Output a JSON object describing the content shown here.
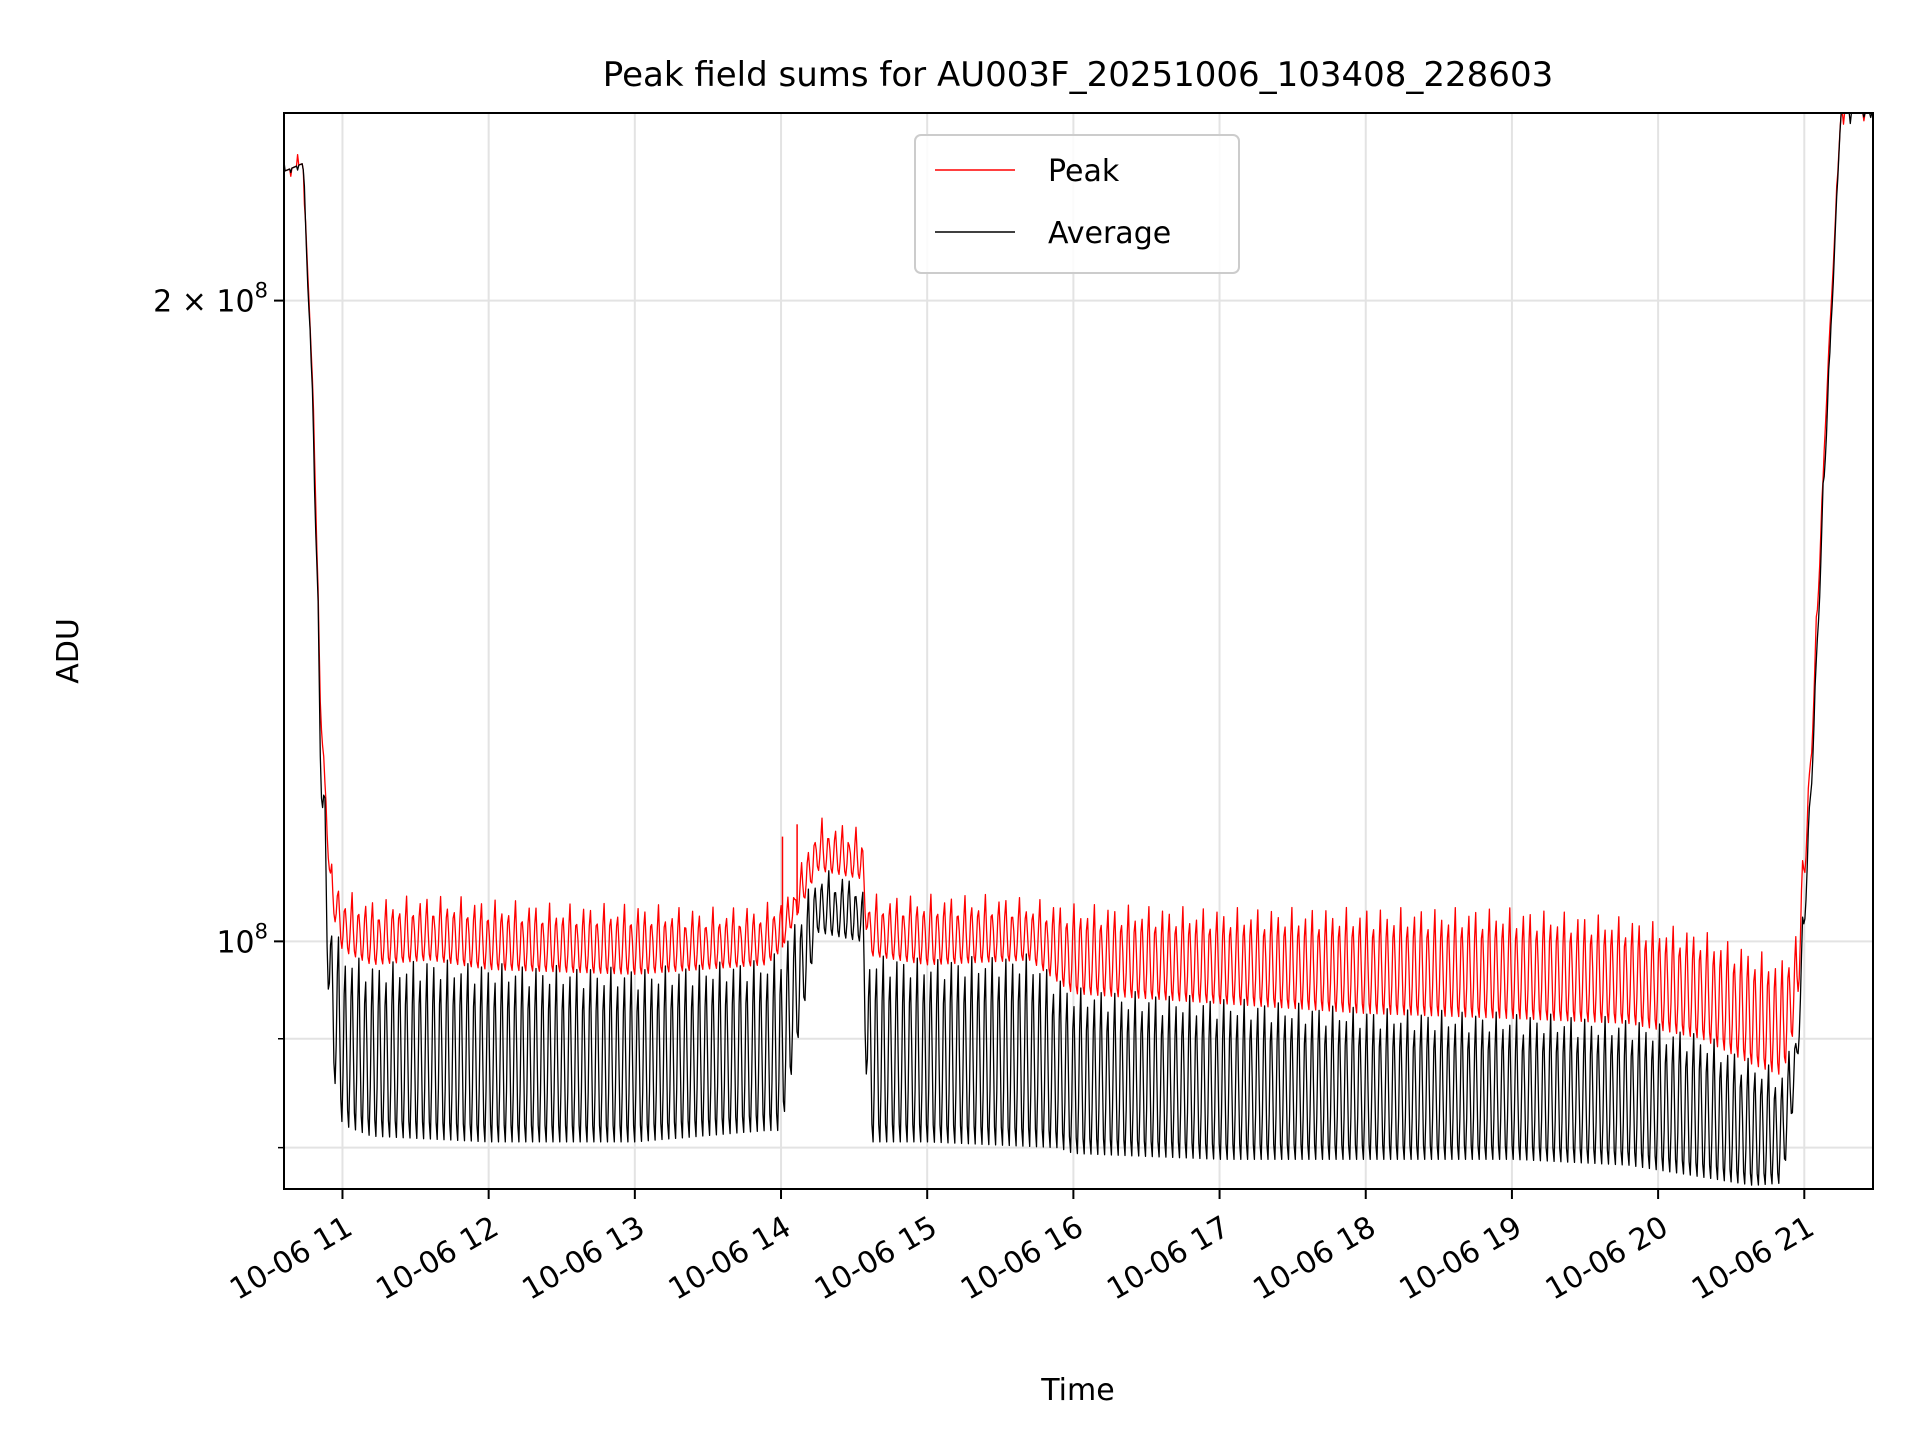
{
  "chart_data": {
    "type": "line",
    "title": "Peak field sums for AU003F_20251006_103408_228603",
    "xlabel": "Time",
    "ylabel": "ADU",
    "yscale": "log",
    "grid": true,
    "legend_position": "upper-center",
    "x_hours_range": [
      10.6,
      21.47
    ],
    "ylim": [
      76500000,
      245000000
    ],
    "x_ticks": [
      {
        "hour": 11,
        "label": "10-06 11"
      },
      {
        "hour": 12,
        "label": "10-06 12"
      },
      {
        "hour": 13,
        "label": "10-06 13"
      },
      {
        "hour": 14,
        "label": "10-06 14"
      },
      {
        "hour": 15,
        "label": "10-06 15"
      },
      {
        "hour": 16,
        "label": "10-06 16"
      },
      {
        "hour": 17,
        "label": "10-06 17"
      },
      {
        "hour": 18,
        "label": "10-06 18"
      },
      {
        "hour": 19,
        "label": "10-06 19"
      },
      {
        "hour": 20,
        "label": "10-06 20"
      },
      {
        "hour": 21,
        "label": "10-06 21"
      }
    ],
    "y_major_ticks": [
      {
        "value": 100000000,
        "base": "10",
        "exp": "8",
        "coef": ""
      },
      {
        "value": 200000000,
        "base": "10",
        "exp": "8",
        "coef": "2 × "
      }
    ],
    "y_minor_ticks": [
      80000000,
      90000000
    ],
    "series": [
      {
        "name": "Peak",
        "color": "#ff0000",
        "top_envelope": [
          [
            10.6,
            230000000
          ],
          [
            10.73,
            232000000
          ],
          [
            10.8,
            180000000
          ],
          [
            10.85,
            130000000
          ],
          [
            10.92,
            108000000
          ],
          [
            11.0,
            104500000
          ],
          [
            11.2,
            103500000
          ],
          [
            11.6,
            104000000
          ],
          [
            12.0,
            103500000
          ],
          [
            12.5,
            103000000
          ],
          [
            13.0,
            103000000
          ],
          [
            13.5,
            102500000
          ],
          [
            13.9,
            103000000
          ],
          [
            14.0,
            104000000
          ],
          [
            14.05,
            104000000
          ],
          [
            14.25,
            113000000
          ],
          [
            14.55,
            112000000
          ],
          [
            14.6,
            104000000
          ],
          [
            15.0,
            104000000
          ],
          [
            15.5,
            104000000
          ],
          [
            16.0,
            103000000
          ],
          [
            17.0,
            102500000
          ],
          [
            18.0,
            102500000
          ],
          [
            19.0,
            102500000
          ],
          [
            19.8,
            101500000
          ],
          [
            20.3,
            100000000
          ],
          [
            20.65,
            98000000
          ],
          [
            20.85,
            97000000
          ],
          [
            20.95,
            100000000
          ],
          [
            21.05,
            125000000
          ],
          [
            21.15,
            180000000
          ],
          [
            21.25,
            245000000
          ],
          [
            21.47,
            245000000
          ]
        ],
        "bottom_envelope": [
          [
            10.6,
            230000000
          ],
          [
            10.73,
            232000000
          ],
          [
            10.8,
            180000000
          ],
          [
            10.85,
            128000000
          ],
          [
            10.92,
            104000000
          ],
          [
            11.0,
            99000000
          ],
          [
            11.2,
            97500000
          ],
          [
            11.6,
            98000000
          ],
          [
            12.0,
            97000000
          ],
          [
            13.0,
            96500000
          ],
          [
            13.9,
            97500000
          ],
          [
            14.0,
            99000000
          ],
          [
            14.25,
            108000000
          ],
          [
            14.55,
            107000000
          ],
          [
            14.6,
            98500000
          ],
          [
            15.0,
            97500000
          ],
          [
            15.7,
            98000000
          ],
          [
            16.0,
            94500000
          ],
          [
            17.0,
            93500000
          ],
          [
            18.0,
            92500000
          ],
          [
            19.0,
            92000000
          ],
          [
            19.8,
            91500000
          ],
          [
            20.3,
            90000000
          ],
          [
            20.65,
            87500000
          ],
          [
            20.85,
            86500000
          ],
          [
            20.95,
            92000000
          ],
          [
            21.05,
            122000000
          ],
          [
            21.15,
            178000000
          ],
          [
            21.25,
            245000000
          ],
          [
            21.47,
            245000000
          ]
        ],
        "spikes": [
          [
            14.01,
            112000000
          ],
          [
            14.11,
            113500000
          ]
        ]
      },
      {
        "name": "Average",
        "color": "#000000",
        "top_envelope": [
          [
            10.6,
            230000000
          ],
          [
            10.73,
            232000000
          ],
          [
            10.8,
            180000000
          ],
          [
            10.85,
            128000000
          ],
          [
            10.92,
            102000000
          ],
          [
            11.0,
            98000000
          ],
          [
            11.2,
            96500000
          ],
          [
            11.6,
            97000000
          ],
          [
            12.0,
            96500000
          ],
          [
            13.0,
            96000000
          ],
          [
            13.9,
            97000000
          ],
          [
            14.0,
            98000000
          ],
          [
            14.25,
            107000000
          ],
          [
            14.55,
            106000000
          ],
          [
            14.6,
            97500000
          ],
          [
            15.0,
            97000000
          ],
          [
            15.7,
            97500000
          ],
          [
            16.0,
            94000000
          ],
          [
            17.0,
            93000000
          ],
          [
            18.0,
            92000000
          ],
          [
            19.0,
            91500000
          ],
          [
            19.8,
            91000000
          ],
          [
            20.3,
            89500000
          ],
          [
            20.65,
            87000000
          ],
          [
            20.85,
            86000000
          ],
          [
            20.95,
            91000000
          ],
          [
            21.05,
            121000000
          ],
          [
            21.15,
            176000000
          ],
          [
            21.25,
            245000000
          ],
          [
            21.47,
            245000000
          ]
        ],
        "bottom_envelope": [
          [
            10.6,
            230000000
          ],
          [
            10.73,
            232000000
          ],
          [
            10.8,
            175000000
          ],
          [
            10.85,
            120000000
          ],
          [
            10.92,
            88000000
          ],
          [
            11.0,
            82000000
          ],
          [
            11.2,
            81000000
          ],
          [
            12.0,
            80500000
          ],
          [
            13.0,
            80500000
          ],
          [
            13.9,
            81500000
          ],
          [
            14.0,
            81500000
          ],
          [
            14.25,
            101000000
          ],
          [
            14.55,
            100000000
          ],
          [
            14.6,
            80500000
          ],
          [
            15.0,
            80500000
          ],
          [
            15.9,
            80000000
          ],
          [
            16.0,
            79500000
          ],
          [
            17.0,
            79000000
          ],
          [
            18.0,
            79000000
          ],
          [
            19.0,
            79000000
          ],
          [
            19.8,
            78500000
          ],
          [
            20.3,
            77500000
          ],
          [
            20.65,
            76800000
          ],
          [
            20.85,
            77000000
          ],
          [
            20.95,
            86000000
          ],
          [
            21.05,
            118000000
          ],
          [
            21.15,
            172000000
          ],
          [
            21.25,
            245000000
          ],
          [
            21.47,
            245000000
          ]
        ]
      }
    ]
  }
}
